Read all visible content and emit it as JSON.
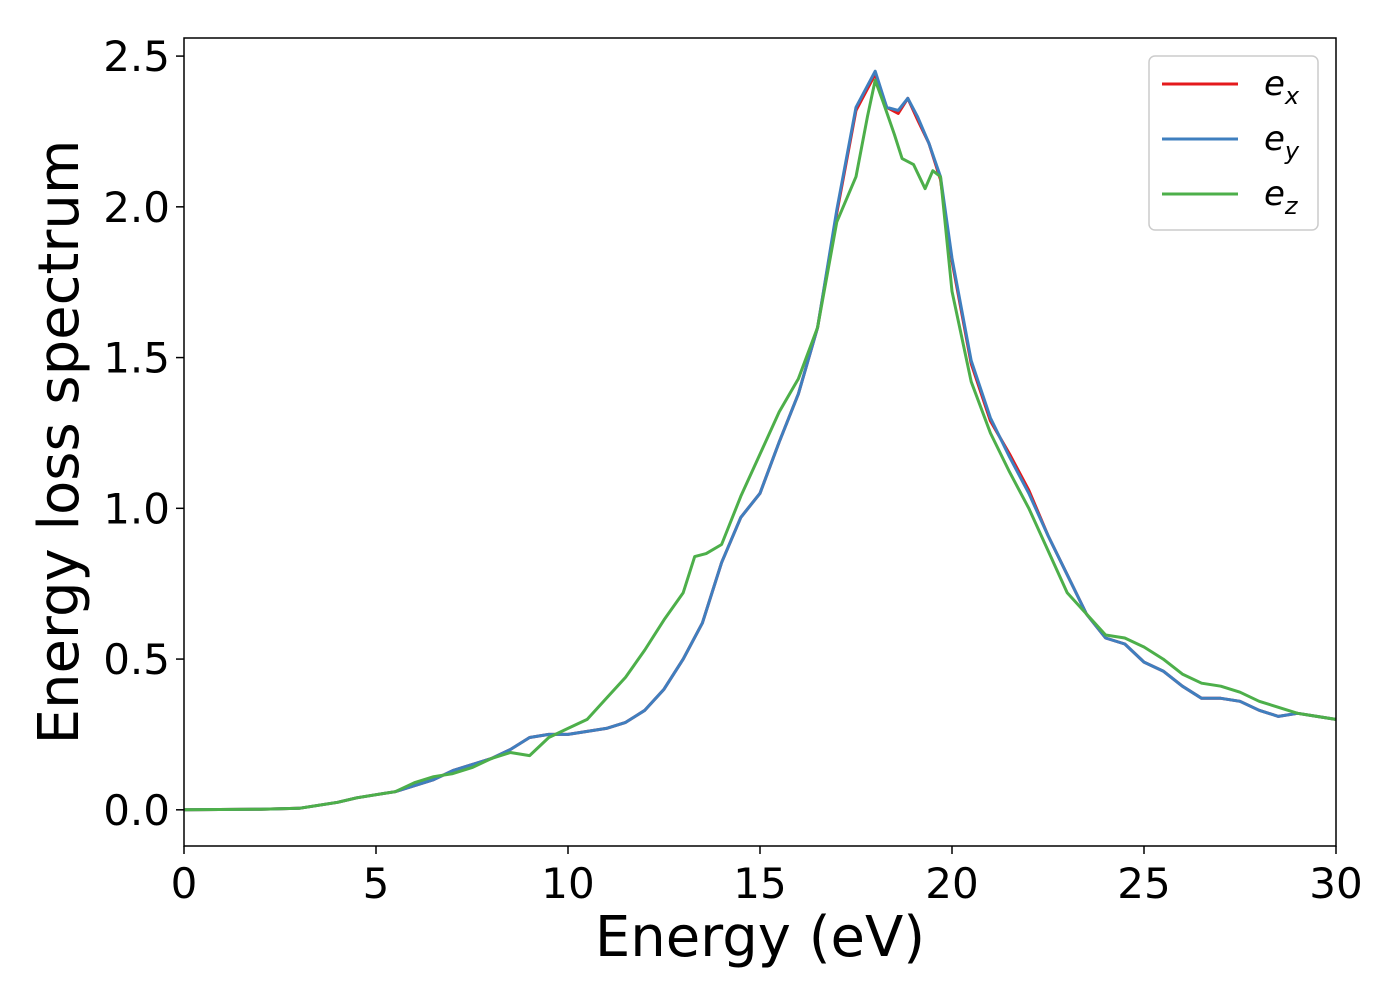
{
  "chart_data": {
    "type": "line",
    "title": "",
    "xlabel": "Energy (eV)",
    "ylabel": "Energy loss spectrum",
    "xlim": [
      0,
      30
    ],
    "ylim": [
      -0.12,
      2.56
    ],
    "xticks": [
      0,
      5,
      10,
      15,
      20,
      25,
      30
    ],
    "xtick_labels": [
      "0",
      "5",
      "10",
      "15",
      "20",
      "25",
      "30"
    ],
    "yticks": [
      0.0,
      0.5,
      1.0,
      1.5,
      2.0,
      2.5
    ],
    "ytick_labels": [
      "0.0",
      "0.5",
      "1.0",
      "1.5",
      "2.0",
      "2.5"
    ],
    "grid": false,
    "legend_position": "top-right",
    "series": [
      {
        "name": "e_x",
        "legend_base": "e",
        "legend_sub": "x",
        "color": "#e41a1c",
        "points": [
          [
            0,
            0
          ],
          [
            2,
            0.002
          ],
          [
            3,
            0.005
          ],
          [
            3.5,
            0.015
          ],
          [
            4,
            0.025
          ],
          [
            4.5,
            0.04
          ],
          [
            5,
            0.05
          ],
          [
            5.5,
            0.06
          ],
          [
            6,
            0.08
          ],
          [
            6.5,
            0.1
          ],
          [
            7,
            0.13
          ],
          [
            7.5,
            0.15
          ],
          [
            8,
            0.17
          ],
          [
            8.5,
            0.2
          ],
          [
            9,
            0.24
          ],
          [
            9.5,
            0.25
          ],
          [
            10,
            0.25
          ],
          [
            10.5,
            0.26
          ],
          [
            11,
            0.27
          ],
          [
            11.5,
            0.29
          ],
          [
            12,
            0.33
          ],
          [
            12.5,
            0.4
          ],
          [
            13,
            0.5
          ],
          [
            13.5,
            0.62
          ],
          [
            14,
            0.82
          ],
          [
            14.5,
            0.97
          ],
          [
            15,
            1.05
          ],
          [
            15.5,
            1.22
          ],
          [
            16,
            1.38
          ],
          [
            16.5,
            1.6
          ],
          [
            17,
            1.98
          ],
          [
            17.5,
            2.32
          ],
          [
            18,
            2.44
          ],
          [
            18.3,
            2.33
          ],
          [
            18.6,
            2.31
          ],
          [
            18.85,
            2.36
          ],
          [
            19.1,
            2.29
          ],
          [
            19.4,
            2.21
          ],
          [
            19.7,
            2.09
          ],
          [
            20,
            1.82
          ],
          [
            20.5,
            1.48
          ],
          [
            21,
            1.29
          ],
          [
            21.5,
            1.18
          ],
          [
            22,
            1.06
          ],
          [
            22.5,
            0.91
          ],
          [
            23,
            0.78
          ],
          [
            23.5,
            0.65
          ],
          [
            24,
            0.57
          ],
          [
            24.5,
            0.55
          ],
          [
            25,
            0.49
          ],
          [
            25.5,
            0.46
          ],
          [
            26,
            0.41
          ],
          [
            26.5,
            0.37
          ],
          [
            27,
            0.37
          ],
          [
            27.5,
            0.36
          ],
          [
            28,
            0.33
          ],
          [
            28.5,
            0.31
          ],
          [
            29,
            0.32
          ],
          [
            29.5,
            0.31
          ],
          [
            30,
            0.3
          ]
        ]
      },
      {
        "name": "e_y",
        "legend_base": "e",
        "legend_sub": "y",
        "color": "#3f7fbf",
        "points": [
          [
            0,
            0
          ],
          [
            2,
            0.002
          ],
          [
            3,
            0.005
          ],
          [
            3.5,
            0.015
          ],
          [
            4,
            0.025
          ],
          [
            4.5,
            0.04
          ],
          [
            5,
            0.05
          ],
          [
            5.5,
            0.06
          ],
          [
            6,
            0.08
          ],
          [
            6.5,
            0.1
          ],
          [
            7,
            0.13
          ],
          [
            7.5,
            0.15
          ],
          [
            8,
            0.17
          ],
          [
            8.5,
            0.2
          ],
          [
            9,
            0.24
          ],
          [
            9.5,
            0.25
          ],
          [
            10,
            0.25
          ],
          [
            10.5,
            0.26
          ],
          [
            11,
            0.27
          ],
          [
            11.5,
            0.29
          ],
          [
            12,
            0.33
          ],
          [
            12.5,
            0.4
          ],
          [
            13,
            0.5
          ],
          [
            13.5,
            0.62
          ],
          [
            14,
            0.82
          ],
          [
            14.5,
            0.97
          ],
          [
            15,
            1.05
          ],
          [
            15.5,
            1.22
          ],
          [
            16,
            1.38
          ],
          [
            16.5,
            1.6
          ],
          [
            17,
            1.99
          ],
          [
            17.5,
            2.33
          ],
          [
            18,
            2.45
          ],
          [
            18.3,
            2.33
          ],
          [
            18.6,
            2.32
          ],
          [
            18.85,
            2.36
          ],
          [
            19.1,
            2.3
          ],
          [
            19.4,
            2.21
          ],
          [
            19.7,
            2.1
          ],
          [
            20,
            1.83
          ],
          [
            20.5,
            1.49
          ],
          [
            21,
            1.3
          ],
          [
            21.5,
            1.17
          ],
          [
            22,
            1.05
          ],
          [
            22.5,
            0.91
          ],
          [
            23,
            0.78
          ],
          [
            23.5,
            0.65
          ],
          [
            24,
            0.57
          ],
          [
            24.5,
            0.55
          ],
          [
            25,
            0.49
          ],
          [
            25.5,
            0.46
          ],
          [
            26,
            0.41
          ],
          [
            26.5,
            0.37
          ],
          [
            27,
            0.37
          ],
          [
            27.5,
            0.36
          ],
          [
            28,
            0.33
          ],
          [
            28.5,
            0.31
          ],
          [
            29,
            0.32
          ],
          [
            29.5,
            0.31
          ],
          [
            30,
            0.3
          ]
        ]
      },
      {
        "name": "e_z",
        "legend_base": "e",
        "legend_sub": "z",
        "color": "#4daf4a",
        "points": [
          [
            0,
            0
          ],
          [
            2,
            0.002
          ],
          [
            3,
            0.005
          ],
          [
            3.5,
            0.015
          ],
          [
            4,
            0.025
          ],
          [
            4.5,
            0.04
          ],
          [
            5,
            0.05
          ],
          [
            5.5,
            0.06
          ],
          [
            6,
            0.09
          ],
          [
            6.5,
            0.11
          ],
          [
            7,
            0.12
          ],
          [
            7.5,
            0.14
          ],
          [
            8,
            0.17
          ],
          [
            8.5,
            0.19
          ],
          [
            9,
            0.18
          ],
          [
            9.5,
            0.24
          ],
          [
            10,
            0.27
          ],
          [
            10.5,
            0.3
          ],
          [
            11,
            0.37
          ],
          [
            11.5,
            0.44
          ],
          [
            12,
            0.53
          ],
          [
            12.5,
            0.63
          ],
          [
            13,
            0.72
          ],
          [
            13.3,
            0.84
          ],
          [
            13.6,
            0.85
          ],
          [
            14,
            0.88
          ],
          [
            14.5,
            1.04
          ],
          [
            15,
            1.18
          ],
          [
            15.5,
            1.32
          ],
          [
            16,
            1.43
          ],
          [
            16.5,
            1.6
          ],
          [
            17,
            1.95
          ],
          [
            17.5,
            2.1
          ],
          [
            17.8,
            2.3
          ],
          [
            18,
            2.42
          ],
          [
            18.2,
            2.35
          ],
          [
            18.5,
            2.24
          ],
          [
            18.7,
            2.16
          ],
          [
            19,
            2.14
          ],
          [
            19.3,
            2.06
          ],
          [
            19.5,
            2.12
          ],
          [
            19.7,
            2.1
          ],
          [
            20,
            1.72
          ],
          [
            20.5,
            1.42
          ],
          [
            21,
            1.25
          ],
          [
            21.5,
            1.12
          ],
          [
            22,
            1.0
          ],
          [
            22.5,
            0.86
          ],
          [
            23,
            0.72
          ],
          [
            23.5,
            0.65
          ],
          [
            24,
            0.58
          ],
          [
            24.5,
            0.57
          ],
          [
            25,
            0.54
          ],
          [
            25.5,
            0.5
          ],
          [
            26,
            0.45
          ],
          [
            26.5,
            0.42
          ],
          [
            27,
            0.41
          ],
          [
            27.5,
            0.39
          ],
          [
            28,
            0.36
          ],
          [
            28.5,
            0.34
          ],
          [
            29,
            0.32
          ],
          [
            29.5,
            0.31
          ],
          [
            30,
            0.3
          ]
        ]
      }
    ]
  }
}
